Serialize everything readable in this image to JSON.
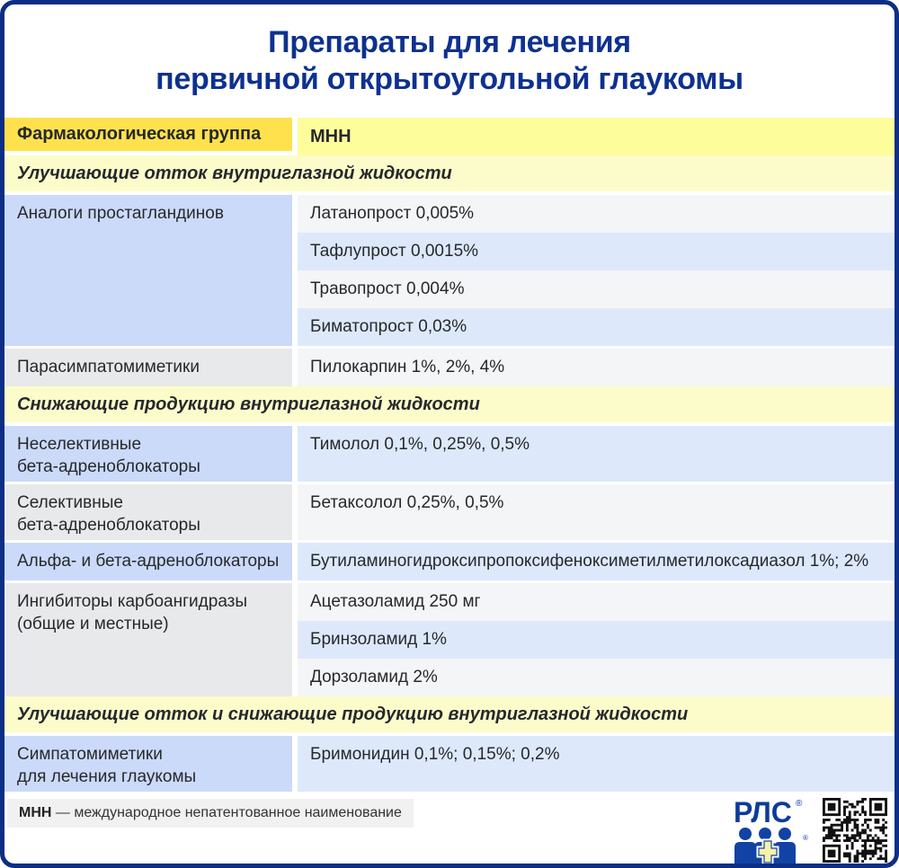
{
  "title": {
    "line1": "Препараты для лечения",
    "line2": "первичной открытоугольной глаукомы"
  },
  "table": {
    "columns": [
      "Фармакологическая группа",
      "МНН"
    ],
    "sections": [
      {
        "header": "Улучшающие отток внутриглазной жидкости",
        "groups": [
          {
            "group": "Аналоги простагландинов",
            "drugs": [
              "Латанопрост 0,005%",
              "Тафлупрост 0,0015%",
              "Травопрост 0,004%",
              "Биматопрост 0,03%"
            ]
          },
          {
            "group": "Парасимпатомиметики",
            "drugs": [
              "Пилокарпин 1%, 2%, 4%"
            ]
          }
        ]
      },
      {
        "header": "Снижающие продукцию внутриглазной жидкости",
        "groups": [
          {
            "group": "Неселективные\nбета-адреноблокаторы",
            "drugs": [
              "Тимолол 0,1%, 0,25%, 0,5%"
            ]
          },
          {
            "group": "Селективные\nбета-адреноблокаторы",
            "drugs": [
              "Бетаксолол 0,25%, 0,5%"
            ]
          },
          {
            "group": "Альфа- и бета-адреноблокаторы",
            "drugs": [
              "Бутиламиногидроксипропоксифеноксиметилметилоксадиазол 1%; 2%"
            ]
          },
          {
            "group": "Ингибиторы карбоангидразы\n(общие и местные)",
            "drugs": [
              "Ацетазоламид 250 мг",
              "Бринзоламид 1%",
              "Дорзоламид 2%"
            ]
          }
        ]
      },
      {
        "header": "Улучшающие отток и снижающие продукцию внутриглазной жидкости",
        "groups": [
          {
            "group": "Симпатомиметики\nдля лечения глаукомы",
            "drugs": [
              "Бримонидин 0,1%; 0,15%; 0,2%"
            ]
          }
        ]
      }
    ]
  },
  "footnote": {
    "abbr": "МНН",
    "text": "— международное непатентованное наименование"
  },
  "logo": {
    "text": "РЛС",
    "registered": "®"
  },
  "colors": {
    "navy": "#0D2E85",
    "title-blue": "#0E3190",
    "gold": "#FFE14D",
    "mnn-yellow": "#FDFD9C",
    "section-yellow": "#FCFCCB",
    "left-blue": "#CBDAF8",
    "left-gray": "#E8E9EA",
    "right-blue": "#DDE9FB",
    "right-gray": "#F4F5F6",
    "note-gray": "#F1F1F2",
    "logo-blue": "#0B3C9C",
    "figure-blue": "#1243A4",
    "cross-yellow": "#F6F2A8"
  }
}
